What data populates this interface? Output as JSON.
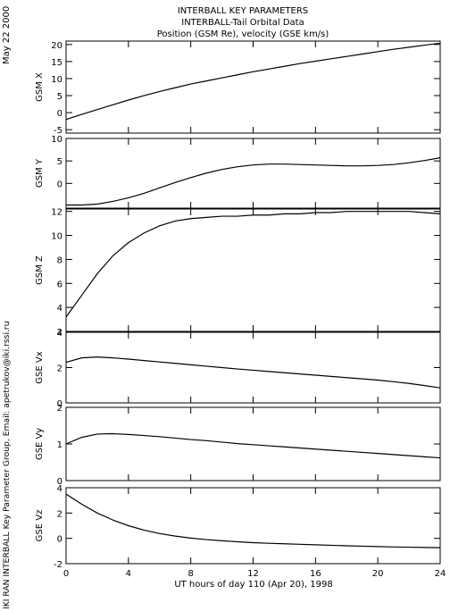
{
  "title_lines": [
    "INTERBALL KEY PARAMETERS",
    "INTERBALL-Tail Orbital Data",
    "Position (GSM Re), velocity (GSE km/s)"
  ],
  "date_label": "May 22 2000",
  "credit_label": "IKI RAN INTERBALL Key Parameter Group, Email: apetrukov@iki.rssi.ru",
  "chart_data": {
    "type": "line",
    "xlabel": "UT hours of day 110 (Apr 20), 1998",
    "xlim": [
      0,
      24
    ],
    "xticks": [
      0,
      4,
      8,
      12,
      16,
      20,
      24
    ],
    "grid": false,
    "panels": [
      {
        "ylabel": "GSM X",
        "ylim": [
          -6,
          21
        ],
        "yticks": [
          -5,
          0,
          5,
          10,
          15,
          20
        ],
        "x": [
          0,
          1,
          2,
          3,
          4,
          5,
          6,
          7,
          8,
          9,
          10,
          11,
          12,
          13,
          14,
          15,
          16,
          17,
          18,
          19,
          20,
          21,
          22,
          23,
          24
        ],
        "y": [
          -2.0,
          -0.5,
          0.9,
          2.3,
          3.7,
          5.0,
          6.2,
          7.3,
          8.4,
          9.3,
          10.2,
          11.1,
          12.0,
          12.8,
          13.6,
          14.4,
          15.1,
          15.8,
          16.5,
          17.2,
          17.9,
          18.6,
          19.2,
          19.8,
          20.4
        ]
      },
      {
        "ylabel": "GSM Y",
        "ylim": [
          -5.5,
          10
        ],
        "yticks": [
          0,
          5,
          10
        ],
        "x": [
          0,
          1,
          2,
          3,
          4,
          5,
          6,
          7,
          8,
          9,
          10,
          11,
          12,
          13,
          14,
          15,
          16,
          17,
          18,
          19,
          20,
          21,
          22,
          23,
          24
        ],
        "y": [
          -4.8,
          -4.8,
          -4.6,
          -4.0,
          -3.2,
          -2.2,
          -1.0,
          0.2,
          1.3,
          2.3,
          3.1,
          3.7,
          4.1,
          4.3,
          4.3,
          4.2,
          4.1,
          4.0,
          3.9,
          3.9,
          4.0,
          4.2,
          4.6,
          5.1,
          5.7
        ]
      },
      {
        "ylabel": "GSM Z",
        "ylim": [
          2,
          12.2
        ],
        "yticks": [
          2,
          4,
          6,
          8,
          10,
          12
        ],
        "x": [
          0,
          1,
          2,
          3,
          4,
          5,
          6,
          7,
          8,
          9,
          10,
          11,
          12,
          13,
          14,
          15,
          16,
          17,
          18,
          19,
          20,
          21,
          22,
          23,
          24
        ],
        "y": [
          3.2,
          5.0,
          6.8,
          8.3,
          9.4,
          10.2,
          10.8,
          11.2,
          11.4,
          11.5,
          11.6,
          11.6,
          11.7,
          11.7,
          11.8,
          11.8,
          11.9,
          11.9,
          12.0,
          12.0,
          12.0,
          12.0,
          12.0,
          11.9,
          11.8
        ]
      },
      {
        "ylabel": "GSE Vx",
        "ylim": [
          0,
          4
        ],
        "yticks": [
          0,
          2,
          4
        ],
        "x": [
          0,
          1,
          2,
          3,
          4,
          5,
          6,
          7,
          8,
          9,
          10,
          11,
          12,
          13,
          14,
          15,
          16,
          17,
          18,
          19,
          20,
          21,
          22,
          23,
          24
        ],
        "y": [
          2.3,
          2.55,
          2.6,
          2.55,
          2.48,
          2.4,
          2.32,
          2.24,
          2.16,
          2.08,
          2.0,
          1.92,
          1.85,
          1.78,
          1.71,
          1.64,
          1.57,
          1.5,
          1.43,
          1.36,
          1.29,
          1.2,
          1.1,
          0.98,
          0.85
        ]
      },
      {
        "ylabel": "GSE Vy",
        "ylim": [
          0,
          2
        ],
        "yticks": [
          0,
          1,
          2
        ],
        "x": [
          0,
          1,
          2,
          3,
          4,
          5,
          6,
          7,
          8,
          9,
          10,
          11,
          12,
          13,
          14,
          15,
          16,
          17,
          18,
          19,
          20,
          21,
          22,
          23,
          24
        ],
        "y": [
          1.0,
          1.18,
          1.27,
          1.28,
          1.26,
          1.23,
          1.2,
          1.16,
          1.12,
          1.09,
          1.05,
          1.01,
          0.98,
          0.95,
          0.92,
          0.89,
          0.86,
          0.83,
          0.8,
          0.77,
          0.74,
          0.71,
          0.68,
          0.65,
          0.62
        ]
      },
      {
        "ylabel": "GSE Vz",
        "ylim": [
          -2,
          4
        ],
        "yticks": [
          -2,
          0,
          2,
          4
        ],
        "x": [
          0,
          1,
          2,
          3,
          4,
          5,
          6,
          7,
          8,
          9,
          10,
          11,
          12,
          13,
          14,
          15,
          16,
          17,
          18,
          19,
          20,
          21,
          22,
          23,
          24
        ],
        "y": [
          3.5,
          2.7,
          2.0,
          1.45,
          1.0,
          0.65,
          0.38,
          0.18,
          0.02,
          -0.1,
          -0.19,
          -0.27,
          -0.34,
          -0.39,
          -0.43,
          -0.47,
          -0.51,
          -0.55,
          -0.59,
          -0.62,
          -0.65,
          -0.68,
          -0.7,
          -0.72,
          -0.74
        ]
      }
    ]
  }
}
